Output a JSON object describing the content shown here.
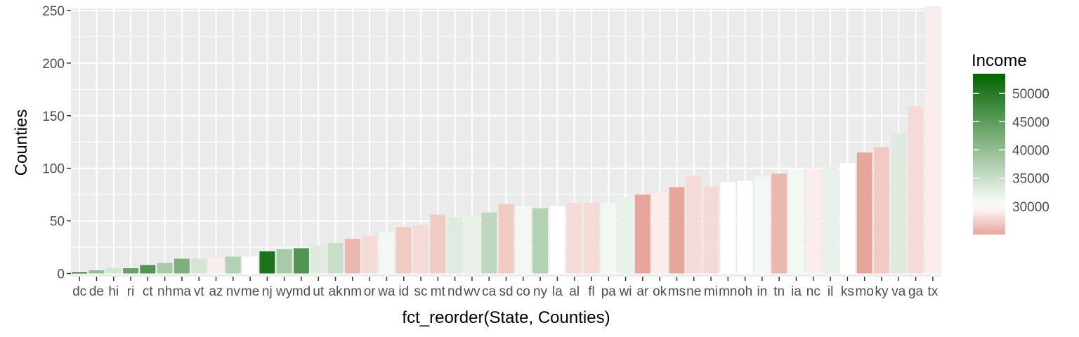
{
  "chart_data": {
    "type": "bar",
    "xlabel": "fct_reorder(State, Counties)",
    "ylabel": "Counties",
    "ylim": [
      -3,
      252
    ],
    "yticks": [
      0,
      50,
      100,
      150,
      200,
      250
    ],
    "grid": true,
    "legend_position": "right",
    "categories": [
      "dc",
      "de",
      "hi",
      "ri",
      "ct",
      "nh",
      "ma",
      "vt",
      "az",
      "nv",
      "me",
      "nj",
      "wy",
      "md",
      "ut",
      "ak",
      "nm",
      "or",
      "wa",
      "id",
      "sc",
      "mt",
      "nd",
      "wv",
      "ca",
      "sd",
      "co",
      "ny",
      "la",
      "al",
      "fl",
      "pa",
      "wi",
      "ar",
      "ok",
      "ms",
      "ne",
      "mi",
      "mn",
      "oh",
      "in",
      "tn",
      "ia",
      "nc",
      "il",
      "ks",
      "mo",
      "ky",
      "va",
      "ga",
      "tx"
    ],
    "values": [
      1,
      3,
      5,
      5,
      8,
      10,
      14,
      14,
      15,
      16,
      16,
      21,
      23,
      24,
      27,
      29,
      33,
      36,
      39,
      44,
      46,
      56,
      53,
      55,
      58,
      66,
      64,
      62,
      64,
      67,
      67,
      67,
      72,
      75,
      77,
      82,
      93,
      83,
      87,
      88,
      92,
      95,
      99,
      100,
      102,
      105,
      115,
      120,
      133,
      159,
      254
    ],
    "series": [
      {
        "name": "Income",
        "values": [
          52000,
          40000,
          34000,
          44000,
          46000,
          38000,
          42000,
          34000,
          29000,
          37000,
          30000,
          51000,
          38000,
          46000,
          33000,
          35000,
          26000,
          28000,
          31000,
          27000,
          28000,
          27000,
          33000,
          32000,
          36000,
          27000,
          31000,
          37000,
          30000,
          28000,
          28000,
          31000,
          32000,
          25000,
          29000,
          25000,
          28000,
          28000,
          30000,
          30000,
          31000,
          26000,
          31000,
          29000,
          32000,
          30000,
          25000,
          27000,
          33000,
          28000,
          29000
        ]
      }
    ],
    "legend": {
      "title": "Income",
      "tick_labels": [
        "50000",
        "45000",
        "40000",
        "35000",
        "30000"
      ],
      "tick_values": [
        50000,
        45000,
        40000,
        35000,
        30000
      ],
      "range": [
        25000,
        53500
      ],
      "colors": {
        "low": "#e6a69b",
        "mid": "#ffffff",
        "high": "#006400",
        "mid_value": 30000
      }
    },
    "panel_background": "#ebebeb",
    "gridline_color": "#ffffff"
  }
}
